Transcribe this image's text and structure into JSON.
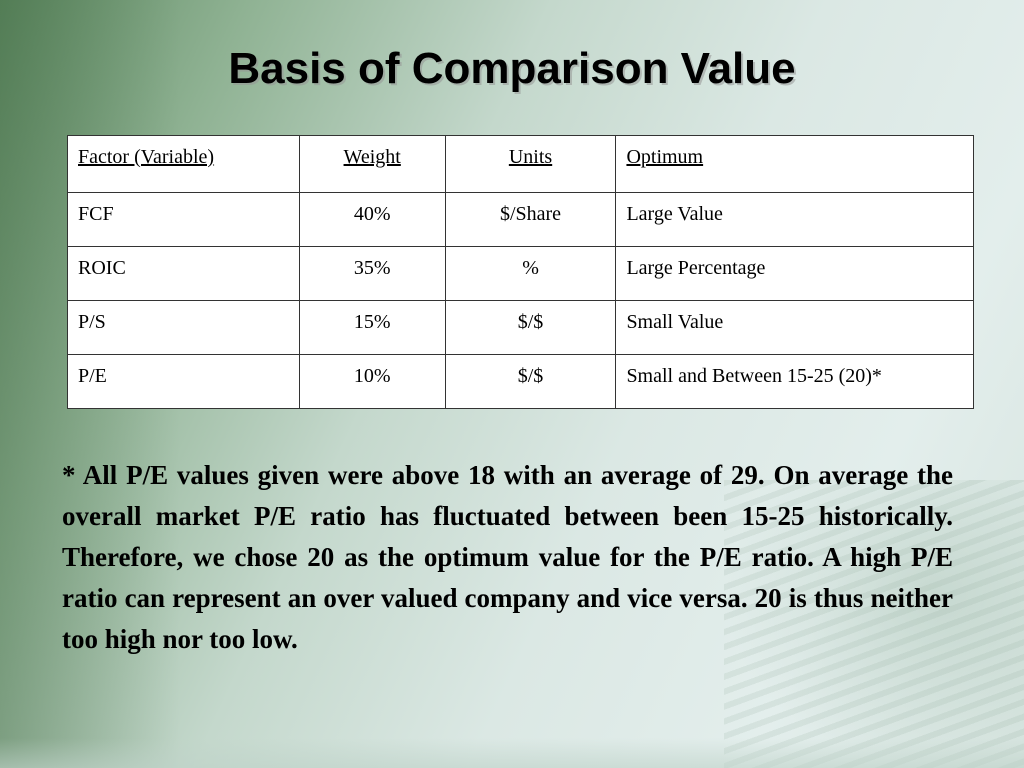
{
  "slide": {
    "title": "Basis of Comparison Value"
  },
  "table": {
    "headers": [
      "Factor (Variable)",
      "Weight",
      "Units",
      "Optimum"
    ],
    "rows": [
      [
        "FCF",
        "40%",
        "$/Share",
        "Large Value"
      ],
      [
        "ROIC",
        "35%",
        "%",
        "Large Percentage"
      ],
      [
        "P/S",
        "15%",
        "$/$",
        "Small Value"
      ],
      [
        "P/E",
        "10%",
        "$/$",
        "Small and Between 15-25 (20)*"
      ]
    ]
  },
  "footnote": "* All P/E values given were above 18 with an average of 29. On average the overall market P/E ratio has fluctuated between been 15-25 historically. Therefore, we chose 20 as the optimum value for the P/E ratio. A high P/E ratio can represent an over valued company and vice versa. 20 is thus neither too high nor too low."
}
